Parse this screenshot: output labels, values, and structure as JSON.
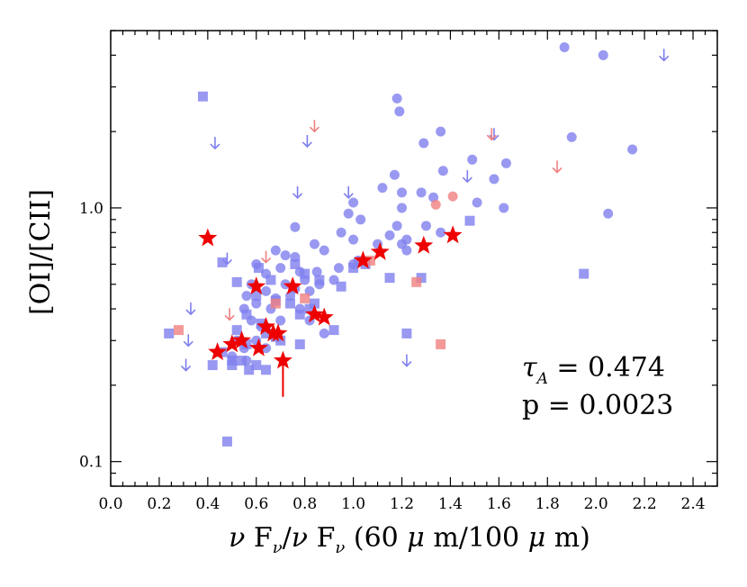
{
  "chart_data": {
    "type": "scatter",
    "xlabel_parts": {
      "nu": "ν",
      "F": " F",
      "sub": "ν",
      "slash": "/",
      "nu2": "ν",
      "F2": " F",
      "sub2": "ν",
      "rest1": " (60 ",
      "mu1": "μ",
      "rest2": " m/100 ",
      "mu2": "μ",
      "rest3": " m)"
    },
    "ylabel": "[OI]/[CII]",
    "xlim": [
      0.0,
      2.5
    ],
    "ylim": [
      0.08,
      5.0
    ],
    "yscale": "log",
    "x_ticks": [
      "0.0",
      "0.2",
      "0.4",
      "0.6",
      "0.8",
      "1.0",
      "1.2",
      "1.4",
      "1.6",
      "1.8",
      "2.0",
      "2.2",
      "2.4"
    ],
    "x_tick_values": [
      0.0,
      0.2,
      0.4,
      0.6,
      0.8,
      1.0,
      1.2,
      1.4,
      1.6,
      1.8,
      2.0,
      2.2,
      2.4
    ],
    "y_ticks": [
      "0.1",
      "1.0"
    ],
    "y_tick_values": [
      0.1,
      1.0
    ],
    "annotation": {
      "tau_symbol": "τ",
      "tau_sub": "A",
      "tau_value": " = 0.474",
      "p_text": "p = 0.0023"
    },
    "colors": {
      "blue": "#7f7fef",
      "red": "#f08080",
      "star": "#ee0000"
    },
    "series": [
      {
        "name": "blue-circles",
        "marker": "circle",
        "color": "#7f7fef",
        "points": [
          [
            1.87,
            4.3
          ],
          [
            2.03,
            4.0
          ],
          [
            1.18,
            2.7
          ],
          [
            1.19,
            2.4
          ],
          [
            1.36,
            2.0
          ],
          [
            1.29,
            1.8
          ],
          [
            1.9,
            1.9
          ],
          [
            2.15,
            1.7
          ],
          [
            1.49,
            1.55
          ],
          [
            1.63,
            1.5
          ],
          [
            1.37,
            1.4
          ],
          [
            1.17,
            1.35
          ],
          [
            1.12,
            1.2
          ],
          [
            1.2,
            1.15
          ],
          [
            1.28,
            1.15
          ],
          [
            1.58,
            1.3
          ],
          [
            1.33,
            1.1
          ],
          [
            1.51,
            1.05
          ],
          [
            1.62,
            1.0
          ],
          [
            1.0,
            1.05
          ],
          [
            1.2,
            1.0
          ],
          [
            2.05,
            0.95
          ],
          [
            0.98,
            0.95
          ],
          [
            1.03,
            0.9
          ],
          [
            1.18,
            0.85
          ],
          [
            1.3,
            0.85
          ],
          [
            0.76,
            0.84
          ],
          [
            1.36,
            0.8
          ],
          [
            0.95,
            0.8
          ],
          [
            1.0,
            0.75
          ],
          [
            1.15,
            0.78
          ],
          [
            1.22,
            0.75
          ],
          [
            1.1,
            0.72
          ],
          [
            0.84,
            0.72
          ],
          [
            1.2,
            0.72
          ],
          [
            0.88,
            0.68
          ],
          [
            0.68,
            0.68
          ],
          [
            0.72,
            0.65
          ],
          [
            0.76,
            0.64
          ],
          [
            1.02,
            0.62
          ],
          [
            1.22,
            0.68
          ],
          [
            0.6,
            0.6
          ],
          [
            0.7,
            0.58
          ],
          [
            0.64,
            0.55
          ],
          [
            0.78,
            0.56
          ],
          [
            0.85,
            0.56
          ],
          [
            0.94,
            0.58
          ],
          [
            1.0,
            0.6
          ],
          [
            0.58,
            0.5
          ],
          [
            0.64,
            0.47
          ],
          [
            0.72,
            0.5
          ],
          [
            0.76,
            0.48
          ],
          [
            0.8,
            0.52
          ],
          [
            0.92,
            0.52
          ],
          [
            0.56,
            0.45
          ],
          [
            0.6,
            0.42
          ],
          [
            0.66,
            0.4
          ],
          [
            0.68,
            0.44
          ],
          [
            0.74,
            0.45
          ],
          [
            0.82,
            0.47
          ],
          [
            0.86,
            0.5
          ],
          [
            0.55,
            0.4
          ],
          [
            0.58,
            0.36
          ],
          [
            0.62,
            0.34
          ],
          [
            0.7,
            0.36
          ],
          [
            0.78,
            0.4
          ],
          [
            0.82,
            0.36
          ],
          [
            0.52,
            0.3
          ],
          [
            0.55,
            0.28
          ],
          [
            0.6,
            0.3
          ],
          [
            0.64,
            0.28
          ],
          [
            0.88,
            0.32
          ],
          [
            0.5,
            0.26
          ],
          [
            0.56,
            0.25
          ]
        ]
      },
      {
        "name": "blue-squares",
        "marker": "square",
        "color": "#7f7fef",
        "points": [
          [
            0.38,
            2.75
          ],
          [
            0.24,
            0.32
          ],
          [
            0.46,
            0.61
          ],
          [
            0.52,
            0.51
          ],
          [
            0.61,
            0.58
          ],
          [
            0.66,
            0.52
          ],
          [
            0.76,
            0.6
          ],
          [
            0.8,
            0.55
          ],
          [
            0.86,
            0.52
          ],
          [
            0.95,
            0.49
          ],
          [
            1.0,
            0.58
          ],
          [
            1.05,
            0.6
          ],
          [
            1.15,
            0.53
          ],
          [
            1.28,
            0.53
          ],
          [
            0.6,
            0.45
          ],
          [
            0.68,
            0.43
          ],
          [
            0.74,
            0.42
          ],
          [
            0.84,
            0.42
          ],
          [
            0.56,
            0.38
          ],
          [
            0.62,
            0.35
          ],
          [
            0.68,
            0.31
          ],
          [
            0.78,
            0.38
          ],
          [
            0.82,
            0.4
          ],
          [
            0.92,
            0.33
          ],
          [
            0.52,
            0.33
          ],
          [
            0.56,
            0.29
          ],
          [
            0.64,
            0.32
          ],
          [
            0.7,
            0.3
          ],
          [
            0.46,
            0.27
          ],
          [
            0.5,
            0.25
          ],
          [
            0.54,
            0.25
          ],
          [
            0.6,
            0.24
          ],
          [
            0.64,
            0.23
          ],
          [
            0.57,
            0.23
          ],
          [
            0.5,
            0.24
          ],
          [
            0.42,
            0.24
          ],
          [
            0.78,
            0.29
          ],
          [
            0.48,
            0.12
          ],
          [
            1.22,
            0.32
          ],
          [
            1.48,
            0.89
          ],
          [
            1.95,
            0.55
          ]
        ]
      },
      {
        "name": "blue-upper-limits",
        "marker": "down-arrow",
        "color": "#7f7fef",
        "points": [
          [
            0.43,
            1.8
          ],
          [
            0.48,
            0.63
          ],
          [
            0.33,
            0.4
          ],
          [
            0.32,
            0.3
          ],
          [
            0.31,
            0.24
          ],
          [
            0.77,
            1.15
          ],
          [
            0.81,
            1.83
          ],
          [
            0.98,
            1.15
          ],
          [
            1.22,
            0.25
          ],
          [
            1.47,
            1.33
          ],
          [
            1.58,
            1.95
          ],
          [
            2.28,
            4.0
          ]
        ]
      },
      {
        "name": "red-circles",
        "marker": "circle",
        "color": "#f08080",
        "points": [
          [
            1.34,
            1.03
          ],
          [
            1.41,
            1.11
          ]
        ]
      },
      {
        "name": "red-squares",
        "marker": "square",
        "color": "#f08080",
        "points": [
          [
            0.28,
            0.33
          ],
          [
            0.68,
            0.42
          ],
          [
            0.8,
            0.44
          ],
          [
            1.07,
            0.62
          ],
          [
            1.26,
            0.51
          ],
          [
            1.36,
            0.29
          ]
        ]
      },
      {
        "name": "red-upper-limits",
        "marker": "down-arrow",
        "color": "#f08080",
        "points": [
          [
            0.84,
            2.1
          ],
          [
            0.64,
            0.64
          ],
          [
            0.49,
            0.38
          ],
          [
            1.57,
            1.95
          ],
          [
            1.84,
            1.45
          ]
        ]
      },
      {
        "name": "red-stars",
        "marker": "star",
        "color": "#ee0000",
        "points": [
          [
            0.4,
            0.76
          ],
          [
            0.44,
            0.27
          ],
          [
            0.5,
            0.29
          ],
          [
            0.54,
            0.3
          ],
          [
            0.6,
            0.49
          ],
          [
            0.61,
            0.28
          ],
          [
            0.64,
            0.34
          ],
          [
            0.67,
            0.32
          ],
          [
            0.69,
            0.32
          ],
          [
            0.71,
            0.25
          ],
          [
            0.75,
            0.49
          ],
          [
            0.84,
            0.38
          ],
          [
            0.88,
            0.37
          ],
          [
            1.04,
            0.62
          ],
          [
            1.11,
            0.67
          ],
          [
            1.29,
            0.71
          ],
          [
            1.41,
            0.78
          ]
        ]
      }
    ],
    "error_bars": [
      {
        "x": 0.71,
        "y_low": 0.18,
        "y_high": 0.25,
        "color": "#ee0000"
      }
    ]
  }
}
